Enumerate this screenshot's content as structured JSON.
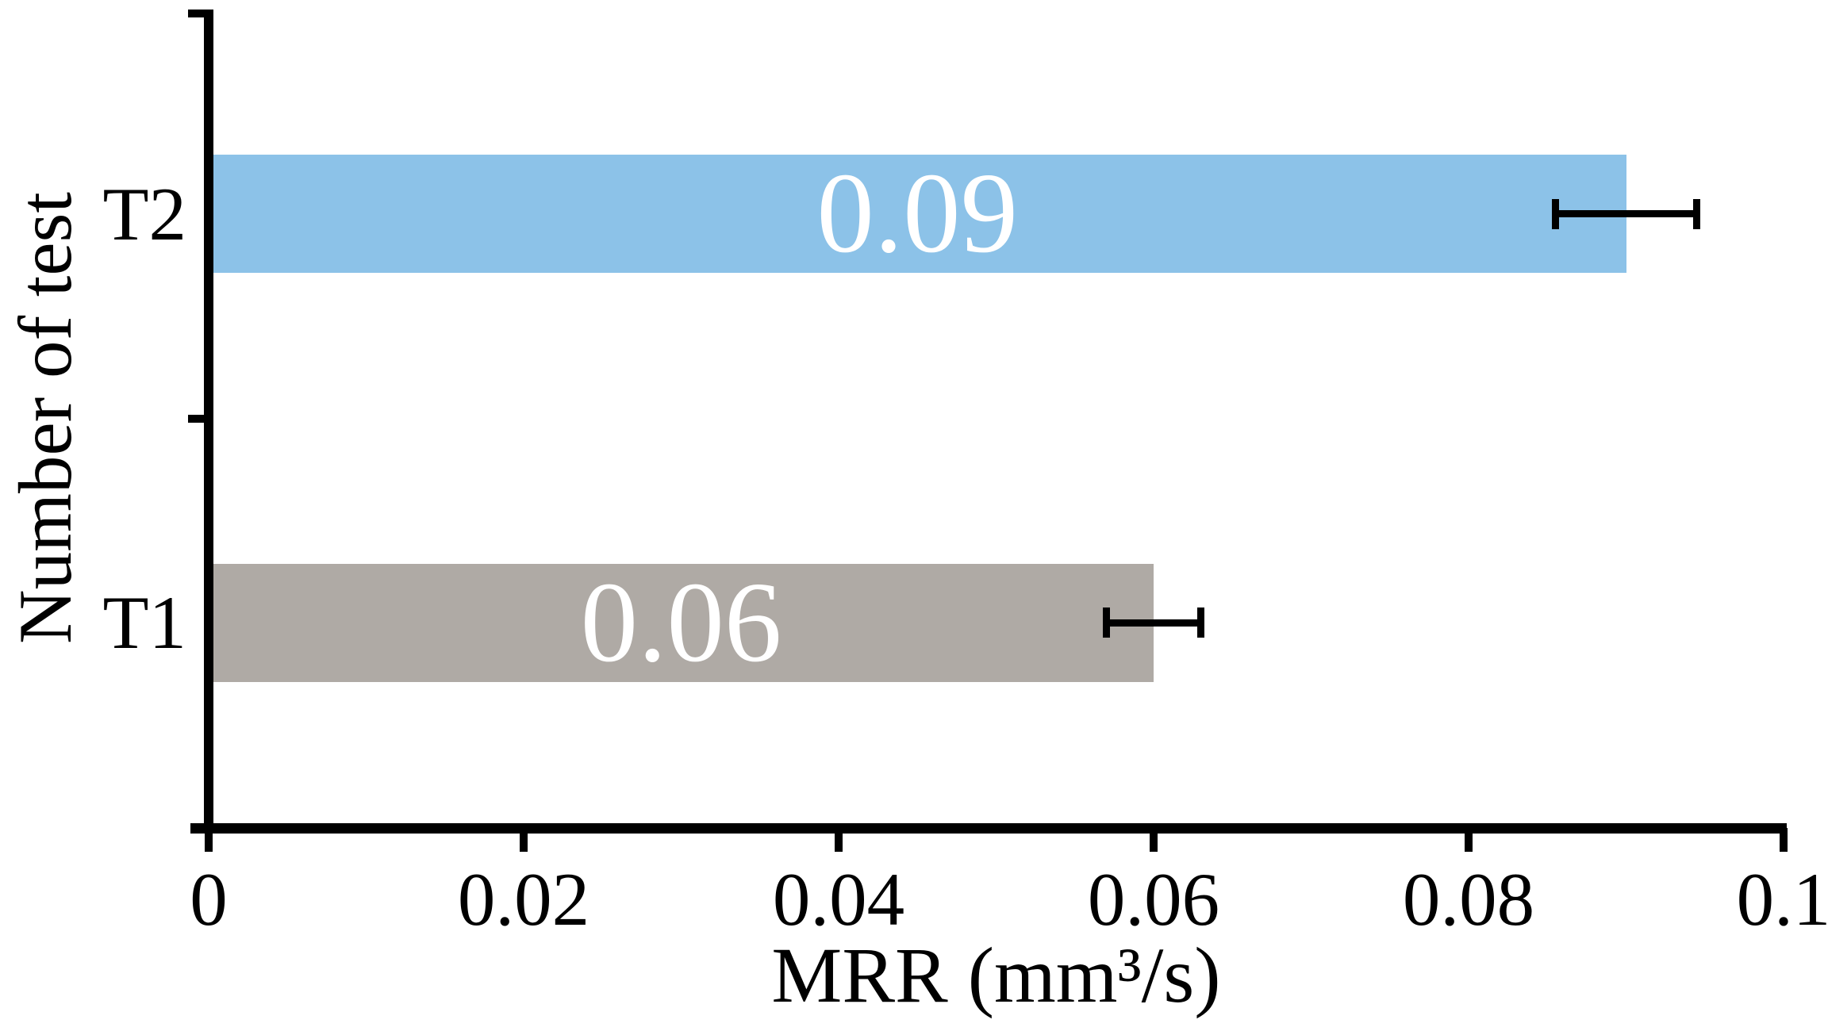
{
  "chart_data": {
    "type": "bar",
    "orientation": "horizontal",
    "title": "",
    "xlabel": "MRR (mm³/s)",
    "ylabel": "Number of test",
    "category_order": "top-to-bottom",
    "categories": [
      "T2",
      "T1"
    ],
    "values": [
      0.09,
      0.06
    ],
    "errors": [
      0.0045,
      0.003
    ],
    "data_labels": [
      "0.09",
      "0.06"
    ],
    "bar_colors": [
      "#8CC2E8",
      "#AFAAA5"
    ],
    "data_label_color": "#FFFFFF",
    "axis_color": "#000000",
    "background_color": "#FFFFFF",
    "xlim": [
      0,
      0.1
    ],
    "x_ticks": [
      {
        "value": 0,
        "label": "0"
      },
      {
        "value": 0.02,
        "label": "0.02"
      },
      {
        "value": 0.04,
        "label": "0.04"
      },
      {
        "value": 0.06,
        "label": "0.06"
      },
      {
        "value": 0.08,
        "label": "0.08"
      },
      {
        "value": 0.1,
        "label": "0.1"
      }
    ],
    "grid": false,
    "legend_visible": false,
    "error_bars": true
  }
}
